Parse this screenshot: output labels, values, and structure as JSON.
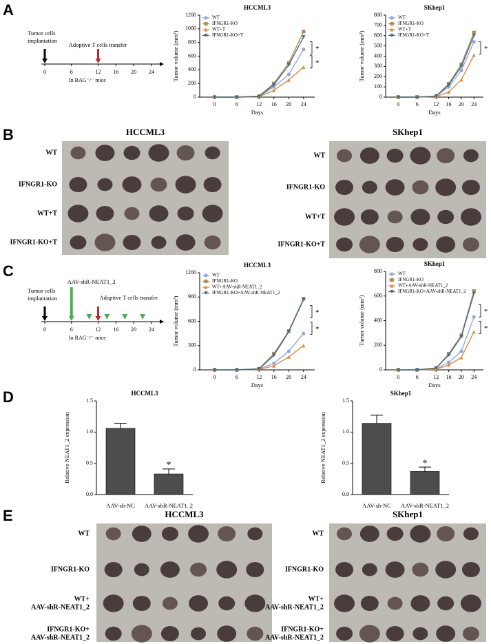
{
  "panel_letters": [
    "A",
    "B",
    "C",
    "D",
    "E"
  ],
  "timelines": [
    {
      "implant": [
        "Tumor cells",
        "implantation"
      ],
      "transfer": "Adoptive T cells transfer",
      "ticks": [
        0,
        6,
        12,
        16,
        20,
        24
      ],
      "host": "In RAG⁻/⁻ mice"
    },
    {
      "aav": "AAV-shR-NEAT1_2",
      "implant": [
        "Tumor cells",
        "implantation"
      ],
      "transfer": "Adoptive T cells transfer",
      "ticks": [
        0,
        6,
        12,
        16,
        20,
        24
      ],
      "host": "In RAG⁻/⁻ mice"
    }
  ],
  "photos": [
    {
      "title": "HCCML3",
      "rows": [
        [
          "WT"
        ],
        [
          "IFNGR1-KO"
        ],
        [
          "WT+T"
        ],
        [
          "IFNGR1-KO+T"
        ]
      ]
    },
    {
      "title": "SKhep1",
      "rows": [
        [
          "WT"
        ],
        [
          "IFNGR1-KO"
        ],
        [
          "WT+T"
        ],
        [
          "IFNGR1-KO+T"
        ]
      ]
    },
    {
      "title": "HCCML3",
      "rows": [
        [
          "WT"
        ],
        [
          "IFNGR1-KO"
        ],
        [
          "WT+",
          "AAV-shR-NEAT1_2"
        ],
        [
          "IFNGR1-KO+",
          "AAV-shR-NEAT1_2"
        ]
      ]
    },
    {
      "title": "SKhep1",
      "rows": [
        [
          "WT"
        ],
        [
          "IFNGR1-KO"
        ],
        [
          "WT+",
          "AAV-shR-NEAT1_2"
        ],
        [
          "IFNGR1-KO+",
          "AAV-shR-NEAT1_2"
        ]
      ]
    }
  ],
  "chart_data": [
    {
      "type": "line",
      "title": "HCCML3",
      "xlabel": "Days",
      "ylabel": "Tumor volume (mm³)",
      "x": [
        0,
        6,
        12,
        16,
        20,
        24
      ],
      "xlim": [
        -4,
        27
      ],
      "xticks": [
        0,
        6,
        12,
        16,
        20,
        24
      ],
      "ylim": [
        0,
        1200
      ],
      "yticks": [
        0,
        200,
        400,
        600,
        800,
        1000,
        1200
      ],
      "series": [
        {
          "name": "WT",
          "color": "#8fa8e0",
          "values": [
            0,
            0,
            10,
            150,
            330,
            700
          ]
        },
        {
          "name": "IFNGR1-KO",
          "color": "#b58b4a",
          "values": [
            0,
            0,
            15,
            200,
            500,
            960
          ]
        },
        {
          "name": "WT+T",
          "color": "#e08a3a",
          "values": [
            0,
            0,
            5,
            100,
            250,
            440
          ]
        },
        {
          "name": "IFNGR1-KO+T",
          "color": "#3c6e8a",
          "values": [
            0,
            0,
            10,
            180,
            470,
            880
          ]
        }
      ],
      "annotations": [
        "*",
        "*"
      ]
    },
    {
      "type": "line",
      "title": "SKhep1",
      "xlabel": "Days",
      "ylabel": "Tumor volume (mm³)",
      "x": [
        0,
        6,
        12,
        16,
        20,
        24
      ],
      "xlim": [
        -4,
        27
      ],
      "xticks": [
        0,
        6,
        12,
        16,
        20,
        24
      ],
      "ylim": [
        0,
        800
      ],
      "yticks": [
        0,
        100,
        200,
        300,
        400,
        500,
        600,
        700,
        800
      ],
      "series": [
        {
          "name": "WT",
          "color": "#8fa8e0",
          "values": [
            0,
            0,
            10,
            100,
            260,
            540
          ]
        },
        {
          "name": "IFNGR1-KO",
          "color": "#b58b4a",
          "values": [
            0,
            0,
            10,
            130,
            320,
            630
          ]
        },
        {
          "name": "WT+T",
          "color": "#e08a3a",
          "values": [
            0,
            0,
            5,
            50,
            170,
            410
          ]
        },
        {
          "name": "IFNGR1-KO+T",
          "color": "#3c6e8a",
          "values": [
            0,
            0,
            10,
            120,
            300,
            600
          ]
        }
      ],
      "annotations": [
        "*"
      ]
    },
    {
      "type": "line",
      "title": "HCCML3",
      "xlabel": "Days",
      "ylabel": "Tumor volume (mm³)",
      "x": [
        0,
        6,
        12,
        16,
        20,
        24
      ],
      "xlim": [
        -4,
        27
      ],
      "xticks": [
        0,
        6,
        12,
        16,
        20,
        24
      ],
      "ylim": [
        0,
        1200
      ],
      "yticks": [
        0,
        300,
        600,
        900,
        1200
      ],
      "series": [
        {
          "name": "WT",
          "color": "#8fa8e0",
          "values": [
            0,
            0,
            10,
            80,
            230,
            450
          ]
        },
        {
          "name": "IFNGR1-KO",
          "color": "#b58b4a",
          "values": [
            0,
            0,
            15,
            200,
            480,
            880
          ]
        },
        {
          "name": "WT+AAV-shR-NEAT1_2",
          "color": "#e08a3a",
          "values": [
            0,
            0,
            5,
            50,
            160,
            300
          ]
        },
        {
          "name": "IFNGR1-KO+AAV-shR-NEAT1_2",
          "color": "#3c6e8a",
          "values": [
            0,
            0,
            10,
            180,
            470,
            870
          ]
        }
      ],
      "annotations": [
        "*",
        "*"
      ]
    },
    {
      "type": "line",
      "title": "SKhep1",
      "xlabel": "Days",
      "ylabel": "Tumor volume (mm³)",
      "x": [
        0,
        6,
        12,
        16,
        20,
        24
      ],
      "xlim": [
        -4,
        27
      ],
      "xticks": [
        0,
        6,
        12,
        16,
        20,
        24
      ],
      "ylim": [
        0,
        800
      ],
      "yticks": [
        0,
        200,
        400,
        600,
        800
      ],
      "series": [
        {
          "name": "WT",
          "color": "#8fa8e0",
          "values": [
            0,
            0,
            10,
            60,
            150,
            430
          ]
        },
        {
          "name": "IFNGR1-KO",
          "color": "#b58b4a",
          "values": [
            0,
            0,
            15,
            130,
            280,
            640
          ]
        },
        {
          "name": "WT+AAV-shR-NEAT1_2",
          "color": "#e08a3a",
          "values": [
            0,
            0,
            5,
            40,
            100,
            310
          ]
        },
        {
          "name": "IFNGR1-KO+AAV-shR-NEAT1_2",
          "color": "#3c6e8a",
          "values": [
            0,
            0,
            15,
            120,
            270,
            620
          ]
        }
      ],
      "annotations": [
        "*",
        "*"
      ]
    },
    {
      "type": "bar",
      "title": "HCCML3",
      "ylabel": "Relative NEAT1_2 expression",
      "categories": [
        "AAV-sh-NC",
        "AAV-shR-NEAT1_2"
      ],
      "values": [
        1.06,
        0.33
      ],
      "errors": [
        0.08,
        0.08
      ],
      "color": "#4d4d4d",
      "ylim": [
        0,
        1.5
      ],
      "yticks": [
        {
          "value": 0,
          "label": "0.0"
        },
        0.5,
        {
          "value": 1,
          "label": "1.0"
        },
        1.5
      ],
      "annotations": [
        "*"
      ]
    },
    {
      "type": "bar",
      "title": "SKhep1",
      "ylabel": "Relative NEAT1_2 expression",
      "categories": [
        "AAV-sh-NC",
        "AAV-shR-NEAT1_2"
      ],
      "values": [
        1.14,
        0.37
      ],
      "errors": [
        0.13,
        0.07
      ],
      "color": "#4d4d4d",
      "ylim": [
        0,
        1.5
      ],
      "yticks": [
        {
          "value": 0,
          "label": "0.0"
        },
        0.5,
        {
          "value": 1,
          "label": "1.0"
        },
        1.5
      ],
      "annotations": [
        "*"
      ]
    }
  ]
}
